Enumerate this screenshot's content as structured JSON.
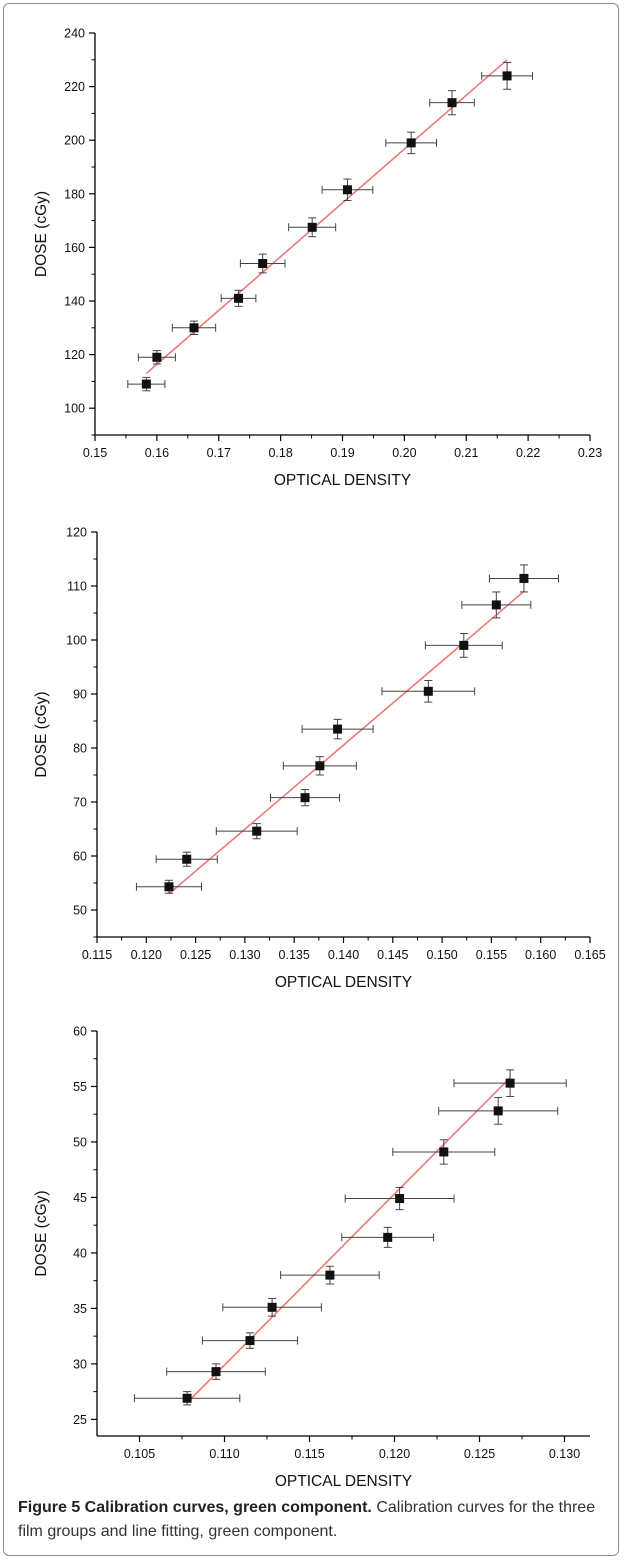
{
  "caption": {
    "figure_label": "Figure 5 Calibration curves, green component.",
    "text": "Calibration curves for the three film groups and line fitting, green component."
  },
  "colors": {
    "fit_line": "#f07878",
    "marker": "#111111",
    "axis": "#000000"
  },
  "chart_data": [
    {
      "type": "scatter",
      "xlabel": "OPTICAL DENSITY",
      "ylabel": "DOSE (cGy)",
      "xlim": [
        0.15,
        0.23
      ],
      "ylim": [
        90,
        240
      ],
      "xticks": [
        0.15,
        0.16,
        0.17,
        0.18,
        0.19,
        0.2,
        0.21,
        0.22,
        0.23
      ],
      "xtick_labels": [
        "0.15",
        "0.16",
        "0.17",
        "0.18",
        "0.19",
        "0.20",
        "0.21",
        "0.22",
        "0.23"
      ],
      "yticks": [
        100,
        120,
        140,
        160,
        180,
        200,
        220,
        240
      ],
      "ytick_labels": [
        "100",
        "120",
        "140",
        "160",
        "180",
        "200",
        "220",
        "240"
      ],
      "points": [
        {
          "x": 0.1583,
          "y": 109,
          "xerr": 0.003,
          "yerr": 2.5
        },
        {
          "x": 0.16,
          "y": 119,
          "xerr": 0.003,
          "yerr": 2.5
        },
        {
          "x": 0.166,
          "y": 130,
          "xerr": 0.0035,
          "yerr": 2.5
        },
        {
          "x": 0.1732,
          "y": 141,
          "xerr": 0.0028,
          "yerr": 3
        },
        {
          "x": 0.1771,
          "y": 154,
          "xerr": 0.0036,
          "yerr": 3.5
        },
        {
          "x": 0.1851,
          "y": 167.5,
          "xerr": 0.0038,
          "yerr": 3.5
        },
        {
          "x": 0.1908,
          "y": 181.5,
          "xerr": 0.0041,
          "yerr": 4
        },
        {
          "x": 0.2011,
          "y": 199,
          "xerr": 0.0041,
          "yerr": 4
        },
        {
          "x": 0.2077,
          "y": 214,
          "xerr": 0.0036,
          "yerr": 4.5
        },
        {
          "x": 0.2166,
          "y": 224,
          "xerr": 0.0041,
          "yerr": 5
        }
      ],
      "fit_line": {
        "x": [
          0.1583,
          0.2166
        ],
        "y": [
          113,
          230
        ]
      }
    },
    {
      "type": "scatter",
      "xlabel": "OPTICAL DENSITY",
      "ylabel": "DOSE (cGy)",
      "xlim": [
        0.115,
        0.165
      ],
      "ylim": [
        45,
        120
      ],
      "xticks": [
        0.115,
        0.12,
        0.125,
        0.13,
        0.135,
        0.14,
        0.145,
        0.15,
        0.155,
        0.16,
        0.165
      ],
      "xtick_labels": [
        "0.115",
        "0.120",
        "0.125",
        "0.130",
        "0.135",
        "0.140",
        "0.145",
        "0.150",
        "0.155",
        "0.160",
        "0.165"
      ],
      "yticks": [
        50,
        60,
        70,
        80,
        90,
        100,
        110,
        120
      ],
      "ytick_labels": [
        "50",
        "60",
        "70",
        "80",
        "90",
        "100",
        "110",
        "120"
      ],
      "points": [
        {
          "x": 0.1223,
          "y": 54.3,
          "xerr": 0.0033,
          "yerr": 1.2
        },
        {
          "x": 0.1241,
          "y": 59.4,
          "xerr": 0.0031,
          "yerr": 1.3
        },
        {
          "x": 0.1312,
          "y": 64.6,
          "xerr": 0.0041,
          "yerr": 1.4
        },
        {
          "x": 0.1361,
          "y": 70.8,
          "xerr": 0.0035,
          "yerr": 1.5
        },
        {
          "x": 0.1376,
          "y": 76.7,
          "xerr": 0.0037,
          "yerr": 1.7
        },
        {
          "x": 0.1394,
          "y": 83.5,
          "xerr": 0.0036,
          "yerr": 1.8
        },
        {
          "x": 0.1486,
          "y": 90.5,
          "xerr": 0.0047,
          "yerr": 2
        },
        {
          "x": 0.1522,
          "y": 99,
          "xerr": 0.0039,
          "yerr": 2.2
        },
        {
          "x": 0.1555,
          "y": 106.5,
          "xerr": 0.0035,
          "yerr": 2.4
        },
        {
          "x": 0.1583,
          "y": 111.4,
          "xerr": 0.0035,
          "yerr": 2.5
        }
      ],
      "fit_line": {
        "x": [
          0.1223,
          0.1583
        ],
        "y": [
          53,
          109
        ]
      }
    },
    {
      "type": "scatter",
      "xlabel": "OPTICAL DENSITY",
      "ylabel": "DOSE (cGy)",
      "xlim": [
        0.1025,
        0.1315
      ],
      "ylim": [
        23.5,
        60
      ],
      "xticks": [
        0.105,
        0.11,
        0.115,
        0.12,
        0.125,
        0.13
      ],
      "xtick_labels": [
        "0.105",
        "0.110",
        "0.115",
        "0.120",
        "0.125",
        "0.130"
      ],
      "yticks": [
        25,
        30,
        35,
        40,
        45,
        50,
        55,
        60
      ],
      "ytick_labels": [
        "25",
        "30",
        "35",
        "40",
        "45",
        "50",
        "55",
        "60"
      ],
      "points": [
        {
          "x": 0.1078,
          "y": 26.9,
          "xerr": 0.0031,
          "yerr": 0.6
        },
        {
          "x": 0.1095,
          "y": 29.3,
          "xerr": 0.0029,
          "yerr": 0.7
        },
        {
          "x": 0.1115,
          "y": 32.1,
          "xerr": 0.0028,
          "yerr": 0.7
        },
        {
          "x": 0.1128,
          "y": 35.1,
          "xerr": 0.0029,
          "yerr": 0.8
        },
        {
          "x": 0.1162,
          "y": 38.0,
          "xerr": 0.0029,
          "yerr": 0.8
        },
        {
          "x": 0.1196,
          "y": 41.4,
          "xerr": 0.0027,
          "yerr": 0.9
        },
        {
          "x": 0.1203,
          "y": 44.9,
          "xerr": 0.0032,
          "yerr": 1.0
        },
        {
          "x": 0.1229,
          "y": 49.1,
          "xerr": 0.003,
          "yerr": 1.1
        },
        {
          "x": 0.1261,
          "y": 52.8,
          "xerr": 0.0035,
          "yerr": 1.2
        },
        {
          "x": 0.1268,
          "y": 55.3,
          "xerr": 0.0033,
          "yerr": 1.2
        }
      ],
      "fit_line": {
        "x": [
          0.1078,
          0.1268
        ],
        "y": [
          26.5,
          55.8
        ]
      }
    }
  ]
}
